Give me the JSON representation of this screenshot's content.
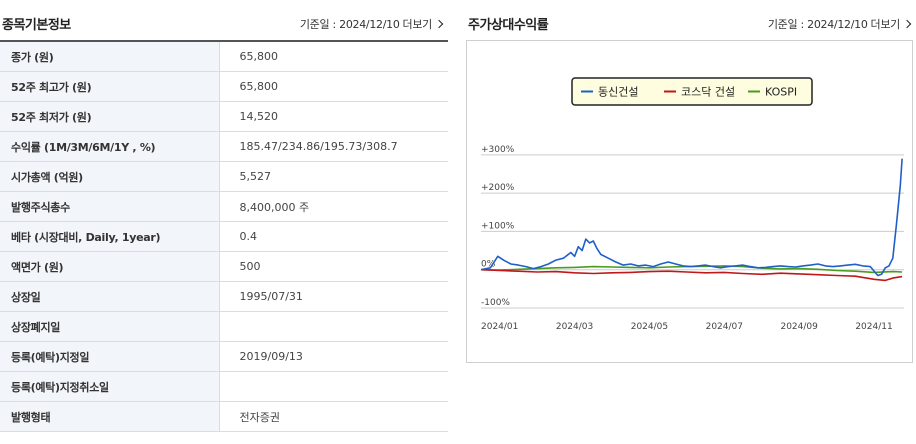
{
  "info_section": {
    "title": "종목기본정보",
    "date_label": "기준일 : 2024/12/10",
    "more_label": "더보기",
    "rows": [
      {
        "label": "종가 (원)",
        "value": "65,800"
      },
      {
        "label": "52주 최고가 (원)",
        "value": "65,800"
      },
      {
        "label": "52주 최저가 (원)",
        "value": "14,520"
      },
      {
        "label": "수익률 (1M/3M/6M/1Y , %)",
        "value": "185.47/234.86/195.73/308.7"
      },
      {
        "label": "시가총액 (억원)",
        "value": "5,527"
      },
      {
        "label": "발행주식총수",
        "value": "8,400,000 주"
      },
      {
        "label": "베타 (시장대비, Daily, 1year)",
        "value": "0.4"
      },
      {
        "label": "액면가 (원)",
        "value": "500"
      },
      {
        "label": "상장일",
        "value": "1995/07/31"
      },
      {
        "label": "상장폐지일",
        "value": ""
      },
      {
        "label": "등록(예탁)지정일",
        "value": "2019/09/13"
      },
      {
        "label": "등록(예탁)지정취소일",
        "value": ""
      },
      {
        "label": "발행형태",
        "value": "전자증권"
      }
    ]
  },
  "chart_section": {
    "title": "주가상대수익률",
    "date_label": "기준일 : 2024/12/10",
    "more_label": "더보기"
  },
  "chart_data": {
    "type": "line",
    "y_ticks": [
      "+300%",
      "+200%",
      "+100%",
      "0%",
      "-100%"
    ],
    "y_tick_values": [
      300,
      200,
      100,
      0,
      -100
    ],
    "ylim": [
      -100,
      310
    ],
    "x_ticks": [
      "2024/01",
      "2024/03",
      "2024/05",
      "2024/07",
      "2024/09",
      "2024/11"
    ],
    "x_tick_positions": [
      0,
      2,
      4,
      6,
      8,
      10
    ],
    "xlim": [
      0,
      11.3
    ],
    "grid": true,
    "legend_position": "top-center",
    "series": [
      {
        "name": "동신건설",
        "color": "#1f5fc7",
        "points": [
          [
            0,
            0
          ],
          [
            0.25,
            5
          ],
          [
            0.45,
            35
          ],
          [
            0.6,
            25
          ],
          [
            0.8,
            15
          ],
          [
            1.0,
            12
          ],
          [
            1.2,
            8
          ],
          [
            1.4,
            3
          ],
          [
            1.6,
            8
          ],
          [
            1.8,
            15
          ],
          [
            2.0,
            25
          ],
          [
            2.2,
            30
          ],
          [
            2.4,
            45
          ],
          [
            2.5,
            35
          ],
          [
            2.6,
            60
          ],
          [
            2.7,
            50
          ],
          [
            2.8,
            80
          ],
          [
            2.9,
            70
          ],
          [
            3.0,
            75
          ],
          [
            3.1,
            55
          ],
          [
            3.2,
            40
          ],
          [
            3.4,
            30
          ],
          [
            3.6,
            20
          ],
          [
            3.8,
            12
          ],
          [
            4.0,
            15
          ],
          [
            4.2,
            10
          ],
          [
            4.4,
            12
          ],
          [
            4.6,
            8
          ],
          [
            4.8,
            15
          ],
          [
            5.0,
            20
          ],
          [
            5.2,
            15
          ],
          [
            5.4,
            10
          ],
          [
            5.6,
            8
          ],
          [
            5.8,
            10
          ],
          [
            6.0,
            12
          ],
          [
            6.2,
            8
          ],
          [
            6.4,
            5
          ],
          [
            6.6,
            8
          ],
          [
            6.8,
            10
          ],
          [
            7.0,
            12
          ],
          [
            7.2,
            8
          ],
          [
            7.4,
            5
          ],
          [
            7.6,
            6
          ],
          [
            7.8,
            8
          ],
          [
            8.0,
            10
          ],
          [
            8.2,
            8
          ],
          [
            8.4,
            7
          ],
          [
            8.6,
            10
          ],
          [
            8.8,
            12
          ],
          [
            9.0,
            15
          ],
          [
            9.2,
            10
          ],
          [
            9.4,
            8
          ],
          [
            9.6,
            10
          ],
          [
            9.8,
            12
          ],
          [
            10.0,
            14
          ],
          [
            10.2,
            10
          ],
          [
            10.4,
            8
          ],
          [
            10.6,
            -15
          ],
          [
            10.7,
            -12
          ],
          [
            10.8,
            5
          ],
          [
            10.9,
            10
          ],
          [
            11.0,
            30
          ],
          [
            11.1,
            120
          ],
          [
            11.2,
            220
          ],
          [
            11.25,
            290
          ]
        ]
      },
      {
        "name": "코스닥 건설",
        "color": "#c01818",
        "points": [
          [
            0,
            0
          ],
          [
            0.5,
            -2
          ],
          [
            1.0,
            -4
          ],
          [
            1.5,
            -6
          ],
          [
            2.0,
            -5
          ],
          [
            2.5,
            -8
          ],
          [
            3.0,
            -10
          ],
          [
            3.5,
            -8
          ],
          [
            4.0,
            -7
          ],
          [
            4.5,
            -5
          ],
          [
            5.0,
            -4
          ],
          [
            5.5,
            -6
          ],
          [
            6.0,
            -8
          ],
          [
            6.5,
            -7
          ],
          [
            7.0,
            -10
          ],
          [
            7.5,
            -12
          ],
          [
            8.0,
            -9
          ],
          [
            8.5,
            -11
          ],
          [
            9.0,
            -13
          ],
          [
            9.5,
            -15
          ],
          [
            10.0,
            -17
          ],
          [
            10.5,
            -25
          ],
          [
            10.8,
            -28
          ],
          [
            11.0,
            -22
          ],
          [
            11.25,
            -18
          ]
        ]
      },
      {
        "name": "KOSPI",
        "color": "#4a9c1e",
        "points": [
          [
            0,
            0
          ],
          [
            0.5,
            -1
          ],
          [
            1.0,
            1
          ],
          [
            1.5,
            3
          ],
          [
            2.0,
            5
          ],
          [
            2.5,
            6
          ],
          [
            3.0,
            8
          ],
          [
            3.5,
            7
          ],
          [
            4.0,
            6
          ],
          [
            4.5,
            5
          ],
          [
            5.0,
            7
          ],
          [
            5.5,
            8
          ],
          [
            6.0,
            9
          ],
          [
            6.5,
            10
          ],
          [
            7.0,
            8
          ],
          [
            7.5,
            4
          ],
          [
            8.0,
            2
          ],
          [
            8.5,
            3
          ],
          [
            9.0,
            1
          ],
          [
            9.5,
            -2
          ],
          [
            10.0,
            -4
          ],
          [
            10.5,
            -7
          ],
          [
            11.0,
            -5
          ],
          [
            11.25,
            -6
          ]
        ]
      }
    ]
  }
}
